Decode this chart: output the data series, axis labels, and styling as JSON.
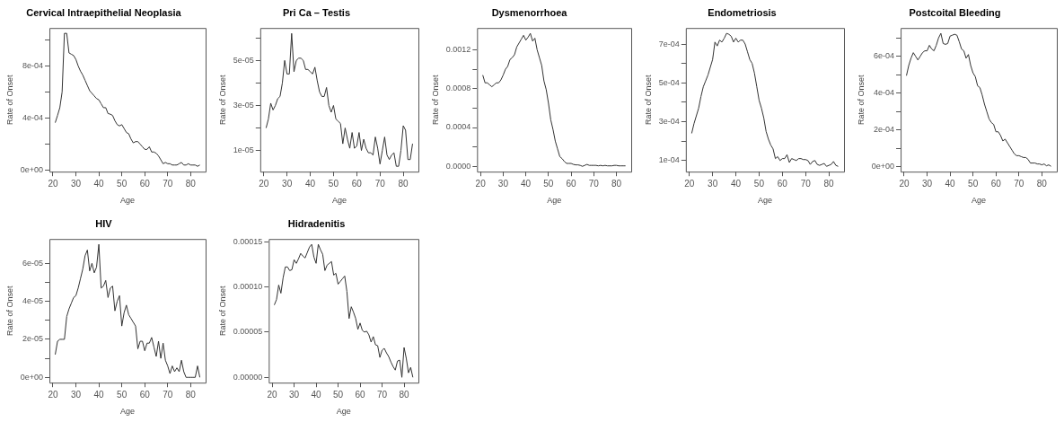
{
  "chart_data": [
    {
      "type": "line",
      "title": "Cervical Intraepithelial Neoplasia",
      "xlabel": "Age",
      "ylabel": "Rate of Onset",
      "color": "#333333",
      "grid": false,
      "x": [
        21,
        22,
        23,
        24,
        25,
        26,
        27,
        28,
        29,
        30,
        31,
        32,
        33,
        34,
        35,
        36,
        37,
        38,
        39,
        40,
        41,
        42,
        43,
        44,
        45,
        46,
        47,
        48,
        49,
        50,
        51,
        52,
        53,
        54,
        55,
        56,
        57,
        58,
        59,
        60,
        61,
        62,
        63,
        64,
        65,
        66,
        67,
        68,
        69,
        70,
        71,
        72,
        73,
        74,
        75,
        76,
        77,
        78,
        79,
        80,
        81,
        82,
        83,
        84
      ],
      "values": [
        0.000365,
        0.00042,
        0.00048,
        0.0006,
        0.00105,
        0.00105,
        0.0009,
        0.00089,
        0.00088,
        0.00085,
        0.0008,
        0.00076,
        0.00073,
        0.00069,
        0.00065,
        0.00061,
        0.00059,
        0.00057,
        0.00055,
        0.00054,
        0.00051,
        0.00048,
        0.00048,
        0.000435,
        0.00043,
        0.00042,
        0.00038,
        0.00035,
        0.00034,
        0.00035,
        0.00032,
        0.00029,
        0.00028,
        0.00024,
        0.00021,
        0.00022,
        0.00022,
        0.0002,
        0.00018,
        0.00016,
        0.00016,
        0.00018,
        0.00014,
        0.00014,
        0.00013,
        0.00011,
        8e-05,
        5e-05,
        6e-05,
        5e-05,
        5e-05,
        4e-05,
        4e-05,
        4e-05,
        5e-05,
        6e-05,
        4e-05,
        4e-05,
        5e-05,
        4e-05,
        4e-05,
        4e-05,
        3e-05,
        4e-05
      ],
      "xlim": [
        18.48,
        86.52
      ],
      "xticks": [
        20,
        30,
        40,
        50,
        60,
        70,
        80
      ],
      "ylim": [
        -1.1e-05,
        0.001091
      ],
      "yticks": [
        {
          "value": 0,
          "label": "0e+00"
        },
        {
          "value": 0.0002,
          "label": null
        },
        {
          "value": 0.0004,
          "label": "4e-04"
        },
        {
          "value": 0.0006,
          "label": null
        },
        {
          "value": 0.0008,
          "label": "8e-04"
        },
        {
          "value": 0.001,
          "label": null
        }
      ]
    },
    {
      "type": "line",
      "title": "Pri Ca – Testis",
      "xlabel": "Age",
      "ylabel": "Rate of Onset",
      "color": "#333333",
      "grid": false,
      "x": [
        21,
        22,
        23,
        24,
        25,
        26,
        27,
        28,
        29,
        30,
        31,
        32,
        33,
        34,
        35,
        36,
        37,
        38,
        39,
        40,
        41,
        42,
        43,
        44,
        45,
        46,
        47,
        48,
        49,
        50,
        51,
        52,
        53,
        54,
        55,
        56,
        57,
        58,
        59,
        60,
        61,
        62,
        63,
        64,
        65,
        66,
        67,
        68,
        69,
        70,
        71,
        72,
        73,
        74,
        75,
        76,
        77,
        78,
        79,
        80,
        81,
        82,
        83,
        84
      ],
      "values": [
        2e-05,
        2.4e-05,
        3.1e-05,
        2.8e-05,
        3e-05,
        3.3e-05,
        3.4e-05,
        4e-05,
        5e-05,
        4.4e-05,
        4.4e-05,
        6.2e-05,
        4.5e-05,
        5e-05,
        5.1e-05,
        5.1e-05,
        5e-05,
        4.6e-05,
        4.6e-05,
        4.5e-05,
        4.4e-05,
        4.7e-05,
        4.1e-05,
        3.6e-05,
        3.4e-05,
        3.4e-05,
        3.8e-05,
        3e-05,
        2.7e-05,
        3e-05,
        2.4e-05,
        2.3e-05,
        2.2e-05,
        1.3e-05,
        2e-05,
        1.5e-05,
        1.1e-05,
        1.8e-05,
        1.1e-05,
        1.2e-05,
        1.8e-05,
        1e-05,
        1.5e-05,
        1.1e-05,
        9e-06,
        9e-06,
        8e-06,
        1.6e-05,
        1.1e-05,
        4e-06,
        1e-05,
        1.6e-05,
        8e-06,
        6e-06,
        8e-06,
        9e-06,
        3e-06,
        3e-06,
        1e-05,
        2.1e-05,
        1.9e-05,
        6e-06,
        6e-06,
        1.3e-05
      ],
      "xlim": [
        18.48,
        86.52
      ],
      "xticks": [
        20,
        30,
        40,
        50,
        60,
        70,
        80
      ],
      "ylim": [
        6e-07,
        6.44e-05
      ],
      "yticks": [
        {
          "value": 1e-05,
          "label": "1e-05"
        },
        {
          "value": 2e-05,
          "label": null
        },
        {
          "value": 3e-05,
          "label": "3e-05"
        },
        {
          "value": 4e-05,
          "label": null
        },
        {
          "value": 5e-05,
          "label": "5e-05"
        },
        {
          "value": 6e-05,
          "label": null
        }
      ]
    },
    {
      "type": "line",
      "title": "Dysmenorrhoea",
      "xlabel": "Age",
      "ylabel": "Rate of Onset",
      "color": "#333333",
      "grid": false,
      "x": [
        21,
        22,
        23,
        24,
        25,
        26,
        27,
        28,
        29,
        30,
        31,
        32,
        33,
        34,
        35,
        36,
        37,
        38,
        39,
        40,
        41,
        42,
        43,
        44,
        45,
        46,
        47,
        48,
        49,
        50,
        51,
        52,
        53,
        54,
        55,
        56,
        57,
        58,
        59,
        60,
        61,
        62,
        63,
        64,
        65,
        66,
        67,
        68,
        69,
        70,
        71,
        72,
        73,
        74,
        75,
        76,
        77,
        78,
        79,
        80,
        81,
        82,
        83,
        84
      ],
      "values": [
        0.00094,
        0.00086,
        0.00086,
        0.00084,
        0.00082,
        0.00084,
        0.00086,
        0.00086,
        0.00089,
        0.00094,
        0.001,
        0.00103,
        0.0011,
        0.00112,
        0.00115,
        0.00123,
        0.00127,
        0.00131,
        0.00135,
        0.0013,
        0.00133,
        0.00137,
        0.00129,
        0.00132,
        0.0012,
        0.00112,
        0.00104,
        0.00088,
        0.00079,
        0.00065,
        0.00048,
        0.00038,
        0.00026,
        0.00018,
        0.0001,
        8e-05,
        5e-05,
        3e-05,
        3e-05,
        3e-05,
        2e-05,
        1.5e-05,
        1.5e-05,
        1e-05,
        0,
        1e-05,
        2e-05,
        1e-05,
        1e-05,
        1e-05,
        1e-05,
        5e-06,
        1e-05,
        5e-06,
        1e-05,
        5e-06,
        5e-06,
        5e-06,
        1e-05,
        1e-05,
        5e-06,
        5e-06,
        5e-06,
        5e-06
      ],
      "xlim": [
        18.48,
        86.52
      ],
      "xticks": [
        20,
        30,
        40,
        50,
        60,
        70,
        80
      ],
      "ylim": [
        -5.5e-05,
        0.001425
      ],
      "yticks": [
        {
          "value": 0,
          "label": "0.0000"
        },
        {
          "value": 0.0002,
          "label": null
        },
        {
          "value": 0.0004,
          "label": "0.0004"
        },
        {
          "value": 0.0006,
          "label": null
        },
        {
          "value": 0.0008,
          "label": "0.0008"
        },
        {
          "value": 0.001,
          "label": null
        },
        {
          "value": 0.0012,
          "label": "0.0012"
        }
      ]
    },
    {
      "type": "line",
      "title": "Endometriosis",
      "xlabel": "Age",
      "ylabel": "Rate of Onset",
      "color": "#333333",
      "grid": false,
      "x": [
        21,
        22,
        23,
        24,
        25,
        26,
        27,
        28,
        29,
        30,
        31,
        32,
        33,
        34,
        35,
        36,
        37,
        38,
        39,
        40,
        41,
        42,
        43,
        44,
        45,
        46,
        47,
        48,
        49,
        50,
        51,
        52,
        53,
        54,
        55,
        56,
        57,
        58,
        59,
        60,
        61,
        62,
        63,
        64,
        65,
        66,
        67,
        68,
        69,
        70,
        71,
        72,
        73,
        74,
        75,
        76,
        77,
        78,
        79,
        80,
        81,
        82,
        83,
        84
      ],
      "values": [
        0.00024,
        0.00029,
        0.00033,
        0.00037,
        0.00043,
        0.00048,
        0.00051,
        0.00054,
        0.00058,
        0.00062,
        0.00071,
        0.00069,
        0.00072,
        0.00071,
        0.00073,
        0.000755,
        0.00075,
        0.00074,
        0.00071,
        0.00073,
        0.00071,
        0.00072,
        0.00072,
        0.0007,
        0.00066,
        0.00062,
        0.0006,
        0.00055,
        0.00048,
        0.00041,
        0.00037,
        0.00032,
        0.00025,
        0.00021,
        0.00018,
        0.00016,
        0.00011,
        0.00012,
        0.0001,
        0.00011,
        0.00011,
        0.00013,
        9e-05,
        0.00011,
        0.000105,
        0.0001,
        0.00011,
        0.00011,
        0.000105,
        0.000105,
        0.0001,
        8e-05,
        9.5e-05,
        0.0001,
        8e-05,
        7.5e-05,
        8e-05,
        8.5e-05,
        7e-05,
        7.5e-05,
        8e-05,
        9.5e-05,
        7.5e-05,
        7e-05
      ],
      "xlim": [
        18.48,
        86.52
      ],
      "xticks": [
        20,
        30,
        40,
        50,
        60,
        70,
        80
      ],
      "ylim": [
        4.26e-05,
        0.0007824
      ],
      "yticks": [
        {
          "value": 0.0001,
          "label": "1e-04"
        },
        {
          "value": 0.0002,
          "label": null
        },
        {
          "value": 0.0003,
          "label": "3e-04"
        },
        {
          "value": 0.0004,
          "label": null
        },
        {
          "value": 0.0005,
          "label": "5e-04"
        },
        {
          "value": 0.0006,
          "label": null
        },
        {
          "value": 0.0007,
          "label": "7e-04"
        }
      ]
    },
    {
      "type": "line",
      "title": "Postcoital Bleeding",
      "xlabel": "Age",
      "ylabel": "Rate of Onset",
      "color": "#333333",
      "grid": false,
      "x": [
        21,
        22,
        23,
        24,
        25,
        26,
        27,
        28,
        29,
        30,
        31,
        32,
        33,
        34,
        35,
        36,
        37,
        38,
        39,
        40,
        41,
        42,
        43,
        44,
        45,
        46,
        47,
        48,
        49,
        50,
        51,
        52,
        53,
        54,
        55,
        56,
        57,
        58,
        59,
        60,
        61,
        62,
        63,
        64,
        65,
        66,
        67,
        68,
        69,
        70,
        71,
        72,
        73,
        74,
        75,
        76,
        77,
        78,
        79,
        80,
        81,
        82,
        83,
        84
      ],
      "values": [
        0.000495,
        0.00055,
        0.00059,
        0.00062,
        0.0006,
        0.00058,
        0.0006,
        0.00062,
        0.00063,
        0.00063,
        0.00066,
        0.00064,
        0.00063,
        0.00066,
        0.0007,
        0.000725,
        0.00067,
        0.000665,
        0.00067,
        0.00071,
        0.000715,
        0.00072,
        0.000715,
        0.00068,
        0.00064,
        0.00063,
        0.00059,
        0.00061,
        0.00055,
        0.00051,
        0.00049,
        0.00044,
        0.00043,
        0.00039,
        0.00034,
        0.0003,
        0.00026,
        0.00024,
        0.00023,
        0.00019,
        0.00019,
        0.00017,
        0.00014,
        0.00015,
        0.00013,
        0.00011,
        9e-05,
        7e-05,
        6e-05,
        6e-05,
        5.5e-05,
        5e-05,
        5e-05,
        4e-05,
        2e-05,
        2e-05,
        2e-05,
        1.5e-05,
        1.5e-05,
        1e-05,
        1.5e-05,
        5e-06,
        1e-05,
        2e-06
      ],
      "xlim": [
        18.48,
        86.52
      ],
      "xticks": [
        20,
        30,
        40,
        50,
        60,
        70,
        80
      ],
      "ylim": [
        -2.7e-05,
        0.000754
      ],
      "yticks": [
        {
          "value": 0,
          "label": "0e+00"
        },
        {
          "value": 0.0001,
          "label": null
        },
        {
          "value": 0.0002,
          "label": "2e-04"
        },
        {
          "value": 0.0003,
          "label": null
        },
        {
          "value": 0.0004,
          "label": "4e-04"
        },
        {
          "value": 0.0005,
          "label": null
        },
        {
          "value": 0.0006,
          "label": "6e-04"
        },
        {
          "value": 0.0007,
          "label": null
        }
      ]
    },
    {
      "type": "line",
      "title": "HIV",
      "xlabel": "Age",
      "ylabel": "Rate of Onset",
      "color": "#333333",
      "grid": false,
      "x": [
        21,
        22,
        23,
        24,
        25,
        26,
        27,
        28,
        29,
        30,
        31,
        32,
        33,
        34,
        35,
        36,
        37,
        38,
        39,
        40,
        41,
        42,
        43,
        44,
        45,
        46,
        47,
        48,
        49,
        50,
        51,
        52,
        53,
        54,
        55,
        56,
        57,
        58,
        59,
        60,
        61,
        62,
        63,
        64,
        65,
        66,
        67,
        68,
        69,
        70,
        71,
        72,
        73,
        74,
        75,
        76,
        77,
        78,
        79,
        80,
        81,
        82,
        83,
        84
      ],
      "values": [
        1.2e-05,
        1.9e-05,
        2e-05,
        2e-05,
        2e-05,
        3.2e-05,
        3.6e-05,
        3.9e-05,
        4.2e-05,
        4.3e-05,
        4.7e-05,
        5.2e-05,
        5.7e-05,
        6.4e-05,
        6.7e-05,
        5.6e-05,
        6e-05,
        5.5e-05,
        5.8e-05,
        7e-05,
        4.7e-05,
        4.8e-05,
        5.1e-05,
        4.2e-05,
        4.7e-05,
        4.8e-05,
        3.5e-05,
        4e-05,
        4.3e-05,
        2.7e-05,
        3.4e-05,
        3.8e-05,
        3.3e-05,
        3.1e-05,
        2.9e-05,
        2.7e-05,
        1.5e-05,
        1.9e-05,
        1.9e-05,
        1.4e-05,
        1.8e-05,
        1.8e-05,
        2.1e-05,
        1.6e-05,
        1.1e-05,
        1.9e-05,
        1e-05,
        1.8e-05,
        9e-06,
        6e-06,
        2e-06,
        6e-06,
        3e-06,
        5e-06,
        3e-06,
        9e-06,
        3e-06,
        0,
        0,
        0,
        0,
        0,
        6e-06,
        0
      ],
      "xlim": [
        18.48,
        86.52
      ],
      "xticks": [
        20,
        30,
        40,
        50,
        60,
        70,
        80
      ],
      "ylim": [
        -2.8e-06,
        7.28e-05
      ],
      "yticks": [
        {
          "value": 0,
          "label": "0e+00"
        },
        {
          "value": 1e-05,
          "label": null
        },
        {
          "value": 2e-05,
          "label": "2e-05"
        },
        {
          "value": 3e-05,
          "label": null
        },
        {
          "value": 4e-05,
          "label": "4e-05"
        },
        {
          "value": 5e-05,
          "label": null
        },
        {
          "value": 6e-05,
          "label": "6e-05"
        }
      ]
    },
    {
      "type": "line",
      "title": "Hidradenitis",
      "xlabel": "Age",
      "ylabel": "Rate of Onset",
      "color": "#333333",
      "grid": false,
      "x": [
        21,
        22,
        23,
        24,
        25,
        26,
        27,
        28,
        29,
        30,
        31,
        32,
        33,
        34,
        35,
        36,
        37,
        38,
        39,
        40,
        41,
        42,
        43,
        44,
        45,
        46,
        47,
        48,
        49,
        50,
        51,
        52,
        53,
        54,
        55,
        56,
        57,
        58,
        59,
        60,
        61,
        62,
        63,
        64,
        65,
        66,
        67,
        68,
        69,
        70,
        71,
        72,
        73,
        74,
        75,
        76,
        77,
        78,
        79,
        80,
        81,
        82,
        83,
        84
      ],
      "values": [
        8e-05,
        8.6e-05,
        0.000102,
        9.3e-05,
        0.00011,
        0.000122,
        0.000122,
        0.000118,
        0.000119,
        0.00013,
        0.000126,
        0.000131,
        0.000137,
        0.000134,
        0.000132,
        0.000138,
        0.000144,
        0.000147,
        0.000133,
        0.000126,
        0.000147,
        0.000141,
        0.000136,
        0.000118,
        0.000124,
        0.000126,
        0.000128,
        0.000113,
        0.000115,
        0.000103,
        0.000106,
        0.000109,
        0.000112,
        9.5e-05,
        6.5e-05,
        7.8e-05,
        7.2e-05,
        6.5e-05,
        5.3e-05,
        6e-05,
        5.2e-05,
        5e-05,
        5.1e-05,
        4.7e-05,
        3.9e-05,
        4.5e-05,
        3.6e-05,
        3.5e-05,
        2.2e-05,
        3e-05,
        3.2e-05,
        2.7e-05,
        2.3e-05,
        1.7e-05,
        1.2e-05,
        8e-06,
        1.8e-05,
        1.9e-05,
        0,
        3.3e-05,
        2.1e-05,
        5e-06,
        1.1e-05,
        0
      ],
      "xlim": [
        18.48,
        86.52
      ],
      "xticks": [
        20,
        30,
        40,
        50,
        60,
        70,
        80
      ],
      "ylim": [
        -5.9e-06,
        0.0001529
      ],
      "yticks": [
        {
          "value": 0,
          "label": "0.00000"
        },
        {
          "value": 5e-05,
          "label": "0.00005"
        },
        {
          "value": 0.0001,
          "label": "0.00010"
        },
        {
          "value": 0.00015,
          "label": "0.00015"
        }
      ]
    }
  ]
}
